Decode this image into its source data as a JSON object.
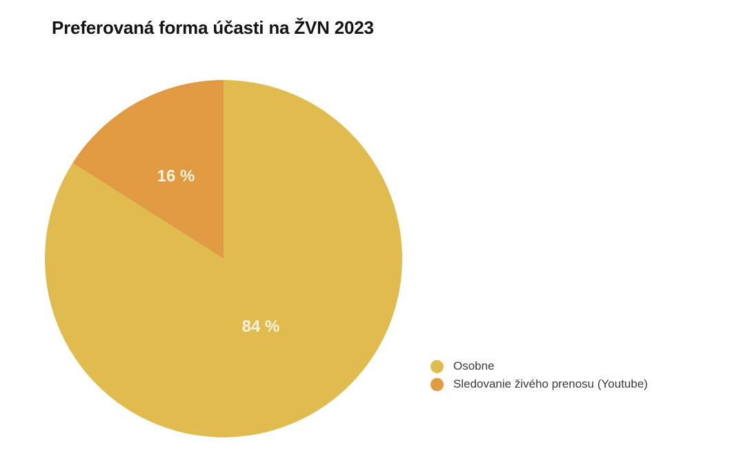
{
  "page": {
    "background_color": "#ffffff"
  },
  "chart_data": {
    "type": "pie",
    "title": "Preferovaná forma účasti na ŽVN 2023",
    "labels": [
      "Osobne",
      "Sledovanie živého prenosu (Youtube)"
    ],
    "values": [
      84,
      16
    ],
    "colors": [
      "#E0BC4E",
      "#DF9A42"
    ],
    "slice_labels": [
      "84 %",
      "16 %"
    ],
    "slice_label_color": "#F7F2DF",
    "title_color": "#141414",
    "legend_text_color": "#3a3a3a",
    "start_angle_deg": 0,
    "direction": "clockwise",
    "legend_position": "right",
    "grid": false
  }
}
